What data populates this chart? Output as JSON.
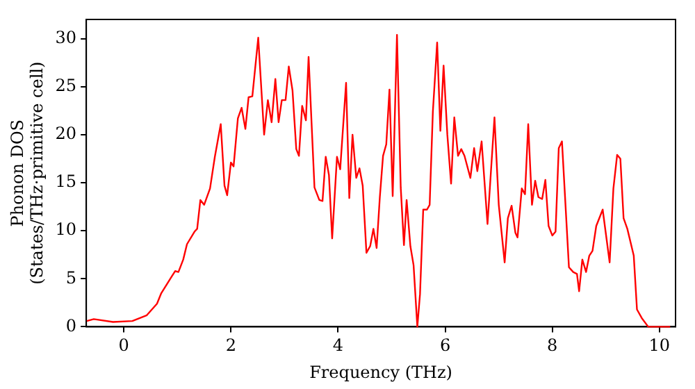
{
  "chart_data": {
    "type": "line",
    "xlabel": "Frequency (THz)",
    "ylabel": "Phonon DOS\n(States/THz·primitive cell)",
    "x": [
      -0.69,
      -0.56,
      -0.2,
      0.16,
      0.43,
      0.62,
      0.7,
      0.89,
      0.96,
      1.02,
      1.11,
      1.18,
      1.32,
      1.37,
      1.43,
      1.5,
      1.61,
      1.7,
      1.81,
      1.88,
      1.93,
      2.0,
      2.05,
      2.13,
      2.2,
      2.27,
      2.33,
      2.4,
      2.51,
      2.62,
      2.69,
      2.76,
      2.83,
      2.89,
      2.95,
      3.02,
      3.08,
      3.15,
      3.22,
      3.27,
      3.33,
      3.4,
      3.45,
      3.56,
      3.65,
      3.71,
      3.77,
      3.83,
      3.89,
      3.98,
      4.04,
      4.15,
      4.21,
      4.27,
      4.34,
      4.4,
      4.46,
      4.53,
      4.6,
      4.66,
      4.72,
      4.78,
      4.84,
      4.9,
      4.96,
      5.02,
      5.1,
      5.17,
      5.23,
      5.28,
      5.35,
      5.41,
      5.48,
      5.53,
      5.59,
      5.66,
      5.71,
      5.77,
      5.85,
      5.91,
      5.97,
      6.04,
      6.11,
      6.17,
      6.24,
      6.3,
      6.36,
      6.47,
      6.54,
      6.6,
      6.68,
      6.79,
      6.92,
      7.0,
      7.11,
      7.17,
      7.24,
      7.31,
      7.35,
      7.43,
      7.49,
      7.55,
      7.62,
      7.68,
      7.74,
      7.81,
      7.87,
      7.93,
      8.0,
      8.06,
      8.12,
      8.18,
      8.31,
      8.39,
      8.46,
      8.5,
      8.56,
      8.63,
      8.69,
      8.75,
      8.82,
      8.94,
      9.07,
      9.14,
      9.21,
      9.27,
      9.33,
      9.4,
      9.52,
      9.58,
      9.67,
      9.79,
      10.2
    ],
    "series": [
      {
        "color": "#ff0000",
        "values": [
          0.6,
          0.8,
          0.5,
          0.6,
          1.2,
          2.4,
          3.5,
          5.2,
          5.8,
          5.7,
          7.0,
          8.6,
          9.9,
          10.2,
          13.2,
          12.7,
          14.4,
          17.7,
          21.1,
          14.7,
          13.7,
          17.1,
          16.7,
          21.7,
          22.8,
          20.6,
          23.9,
          24.0,
          30.1,
          20.0,
          23.6,
          21.3,
          25.8,
          21.3,
          23.6,
          23.6,
          27.1,
          24.6,
          18.5,
          17.8,
          23.0,
          21.5,
          28.1,
          14.5,
          13.2,
          13.1,
          17.7,
          15.8,
          9.2,
          17.7,
          16.4,
          25.4,
          13.4,
          20.0,
          15.5,
          16.5,
          14.7,
          7.7,
          8.4,
          10.2,
          8.2,
          13.5,
          17.8,
          19.0,
          24.7,
          13.6,
          30.4,
          14.5,
          8.5,
          13.2,
          8.4,
          6.4,
          0.0,
          3.4,
          12.2,
          12.2,
          12.7,
          22.4,
          29.6,
          20.4,
          27.2,
          20.0,
          14.9,
          21.8,
          17.8,
          18.5,
          17.8,
          15.5,
          18.6,
          16.2,
          19.3,
          10.7,
          21.8,
          12.7,
          6.7,
          11.3,
          12.6,
          9.8,
          9.3,
          14.4,
          13.8,
          21.1,
          12.7,
          15.2,
          13.5,
          13.3,
          15.3,
          10.5,
          9.5,
          9.9,
          18.6,
          19.3,
          6.2,
          5.7,
          5.5,
          3.7,
          7.0,
          5.7,
          7.4,
          7.9,
          10.5,
          12.2,
          6.7,
          14.4,
          17.9,
          17.5,
          11.3,
          10.2,
          7.4,
          1.8,
          0.9,
          0.0,
          0.0
        ]
      }
    ],
    "xlim": [
      -0.7,
      10.3
    ],
    "xticks": [
      0,
      2,
      4,
      6,
      8,
      10
    ],
    "ylim": [
      0,
      32
    ],
    "yticks": [
      0,
      5,
      10,
      15,
      20,
      25,
      30
    ],
    "grid": false,
    "legend": false,
    "marker": "none",
    "line_style": "solid"
  }
}
